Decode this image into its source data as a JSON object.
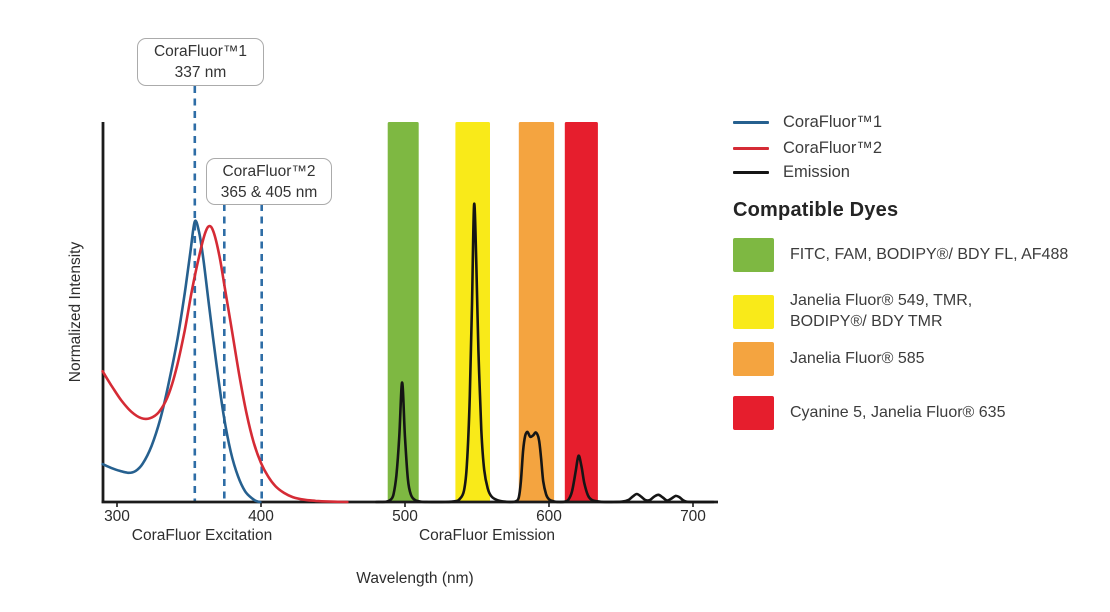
{
  "chart_data": {
    "type": "line",
    "xlabel": "Wavelength (nm)",
    "ylabel": "Normalized Intensity",
    "x_ticks": [
      300,
      400,
      500,
      600,
      700
    ],
    "x_range": [
      290,
      717
    ],
    "y_range": [
      0,
      1
    ],
    "grid": false,
    "axis_sections": [
      {
        "key": "excitation",
        "label": "CoraFluor Excitation"
      },
      {
        "key": "emission",
        "label": "CoraFluor Emission"
      }
    ],
    "annotations": [
      {
        "key": "corafluor1-callout",
        "line1": "CoraFluor™1",
        "line2": "337 nm"
      },
      {
        "key": "corafluor2-callout",
        "line1": "CoraFluor™2",
        "line2": "365 & 405 nm"
      }
    ],
    "markers": [
      {
        "key": "guide-337",
        "label": "337 nm",
        "nm_visual": 354
      },
      {
        "key": "guide-365",
        "label": "365 nm",
        "nm_visual": 374.5
      },
      {
        "key": "guide-405",
        "label": "405 nm",
        "nm_visual": 400.5
      }
    ],
    "marker_color": "#2e6da6",
    "bands": [
      {
        "key": "green",
        "dyes": "FITC, FAM, BODIPY®/ BDY FL, AF488",
        "color": "#7eb842",
        "from_nm": 488,
        "to_nm": 509.5
      },
      {
        "key": "yellow",
        "dyes": "Janelia Fluor® 549, TMR, BODIPY®/ BDY TMR",
        "color": "#f9ea19",
        "from_nm": 535,
        "to_nm": 559
      },
      {
        "key": "orange",
        "dyes": "Janelia Fluor® 585",
        "color": "#f4a440",
        "from_nm": 579,
        "to_nm": 603.5
      },
      {
        "key": "red",
        "dyes": "Cyanine 5, Janelia Fluor® 635",
        "color": "#e61e2d",
        "from_nm": 611,
        "to_nm": 634
      }
    ],
    "series": [
      {
        "key": "corafluor1",
        "name": "CoraFluor™1",
        "color": "#26608f",
        "points": [
          [
            290,
            0.1
          ],
          [
            296,
            0.09
          ],
          [
            302,
            0.082
          ],
          [
            308,
            0.077
          ],
          [
            313,
            0.082
          ],
          [
            318,
            0.102
          ],
          [
            324,
            0.148
          ],
          [
            330,
            0.218
          ],
          [
            336,
            0.315
          ],
          [
            342,
            0.43
          ],
          [
            347,
            0.55
          ],
          [
            351,
            0.66
          ],
          [
            354,
            0.74
          ],
          [
            357,
            0.712
          ],
          [
            360,
            0.64
          ],
          [
            364,
            0.515
          ],
          [
            369,
            0.365
          ],
          [
            374,
            0.23
          ],
          [
            379,
            0.132
          ],
          [
            384,
            0.068
          ],
          [
            389,
            0.028
          ],
          [
            394,
            0.009
          ],
          [
            397,
            0.002
          ],
          [
            399.5,
            0
          ]
        ]
      },
      {
        "key": "corafluor2",
        "name": "CoraFluor™2",
        "color": "#d52b35",
        "points": [
          [
            290,
            0.345
          ],
          [
            296,
            0.308
          ],
          [
            303,
            0.268
          ],
          [
            310,
            0.238
          ],
          [
            317,
            0.221
          ],
          [
            323,
            0.221
          ],
          [
            329,
            0.237
          ],
          [
            335,
            0.276
          ],
          [
            341,
            0.348
          ],
          [
            347,
            0.452
          ],
          [
            352,
            0.558
          ],
          [
            357,
            0.648
          ],
          [
            361,
            0.707
          ],
          [
            364,
            0.728
          ],
          [
            367,
            0.713
          ],
          [
            371,
            0.652
          ],
          [
            375,
            0.562
          ],
          [
            380,
            0.448
          ],
          [
            385,
            0.333
          ],
          [
            390,
            0.233
          ],
          [
            395,
            0.156
          ],
          [
            400,
            0.103
          ],
          [
            405,
            0.067
          ],
          [
            410,
            0.042
          ],
          [
            416,
            0.024
          ],
          [
            422,
            0.013
          ],
          [
            430,
            0.006
          ],
          [
            438,
            0.003
          ],
          [
            448,
            0.001
          ],
          [
            460,
            0
          ]
        ]
      },
      {
        "key": "emission",
        "name": "Emission",
        "color": "#151515",
        "points": [
          [
            480,
            0
          ],
          [
            487,
            0.001
          ],
          [
            490,
            0.006
          ],
          [
            492,
            0.02
          ],
          [
            494,
            0.07
          ],
          [
            496,
            0.17
          ],
          [
            498,
            0.315
          ],
          [
            500,
            0.17
          ],
          [
            502,
            0.06
          ],
          [
            504,
            0.02
          ],
          [
            507,
            0.005
          ],
          [
            511,
            0.001
          ],
          [
            516,
            0
          ],
          [
            528,
            0
          ],
          [
            535,
            0.002
          ],
          [
            538,
            0.008
          ],
          [
            541,
            0.03
          ],
          [
            543,
            0.1
          ],
          [
            545,
            0.28
          ],
          [
            546.5,
            0.52
          ],
          [
            548,
            0.785
          ],
          [
            549.5,
            0.63
          ],
          [
            551,
            0.4
          ],
          [
            553,
            0.19
          ],
          [
            555,
            0.085
          ],
          [
            557.5,
            0.035
          ],
          [
            560,
            0.015
          ],
          [
            564,
            0.005
          ],
          [
            569,
            0.001
          ],
          [
            574,
            0
          ],
          [
            577,
            0.002
          ],
          [
            579,
            0.012
          ],
          [
            580.5,
            0.055
          ],
          [
            582,
            0.135
          ],
          [
            583.5,
            0.175
          ],
          [
            585,
            0.185
          ],
          [
            587,
            0.172
          ],
          [
            589,
            0.176
          ],
          [
            591,
            0.183
          ],
          [
            593,
            0.165
          ],
          [
            594.5,
            0.115
          ],
          [
            596,
            0.055
          ],
          [
            598,
            0.02
          ],
          [
            600,
            0.007
          ],
          [
            603,
            0.002
          ],
          [
            607,
            0
          ],
          [
            611,
            0.001
          ],
          [
            613.5,
            0.006
          ],
          [
            616,
            0.028
          ],
          [
            618.5,
            0.08
          ],
          [
            620.5,
            0.122
          ],
          [
            622.5,
            0.095
          ],
          [
            624.5,
            0.05
          ],
          [
            627,
            0.018
          ],
          [
            629.5,
            0.006
          ],
          [
            633,
            0.002
          ],
          [
            638,
            0
          ],
          [
            645,
            0
          ],
          [
            651,
            0.001
          ],
          [
            655,
            0.005
          ],
          [
            658,
            0.014
          ],
          [
            661,
            0.021
          ],
          [
            664,
            0.014
          ],
          [
            667,
            0.005
          ],
          [
            670,
            0.005
          ],
          [
            673,
            0.014
          ],
          [
            676,
            0.019
          ],
          [
            679,
            0.012
          ],
          [
            682,
            0.004
          ],
          [
            685,
            0.009
          ],
          [
            688,
            0.016
          ],
          [
            690.5,
            0.013
          ],
          [
            693,
            0.005
          ],
          [
            695.5,
            0.001
          ],
          [
            700,
            0
          ],
          [
            714,
            0
          ]
        ]
      }
    ]
  },
  "legend": {
    "series": [
      {
        "label": "CoraFluor™1",
        "color": "#26608f"
      },
      {
        "label": "CoraFluor™2",
        "color": "#d52b35"
      },
      {
        "label": "Emission",
        "color": "#151515"
      }
    ],
    "heading": "Compatible Dyes",
    "dyes": [
      {
        "color": "#7eb842",
        "lines": [
          "FITC, FAM, BODIPY®/ BDY FL, AF488"
        ]
      },
      {
        "color": "#f9ea19",
        "lines": [
          "Janelia Fluor® 549, TMR,",
          "BODIPY®/ BDY TMR"
        ]
      },
      {
        "color": "#f4a440",
        "lines": [
          "Janelia Fluor® 585"
        ]
      },
      {
        "color": "#e61e2d",
        "lines": [
          "Cyanine 5, Janelia Fluor® 635"
        ]
      }
    ]
  }
}
